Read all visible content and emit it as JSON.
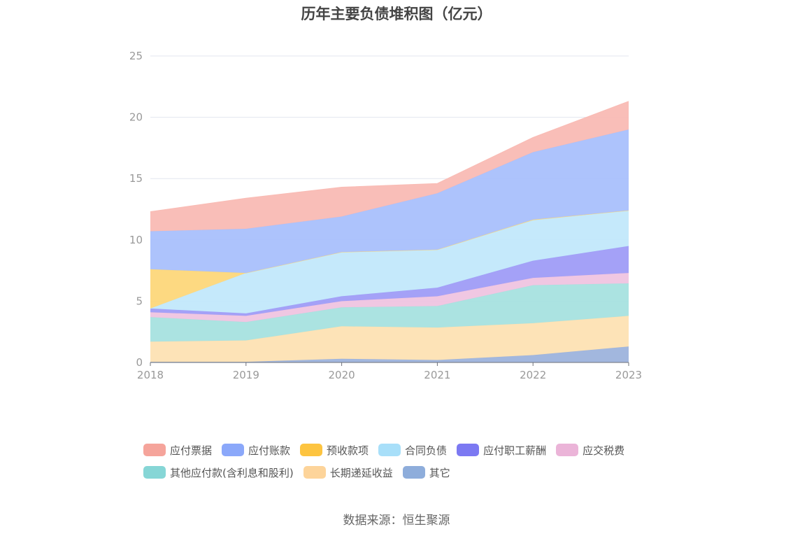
{
  "page": {
    "title": "历年主要负债堆积图（亿元）",
    "source": "数据来源：恒生聚源"
  },
  "chart_data": {
    "type": "area",
    "stacked": true,
    "title": "历年主要负债堆积图（亿元）",
    "categories": [
      "2018",
      "2019",
      "2020",
      "2021",
      "2022",
      "2023"
    ],
    "ylim": [
      0,
      25
    ],
    "yticks": [
      0,
      5,
      10,
      15,
      20,
      25
    ],
    "grid": true,
    "legend_position": "bottom",
    "series": [
      {
        "name": "其它",
        "color": "#9db3dc",
        "values": [
          0.05,
          0.05,
          0.3,
          0.2,
          0.6,
          1.3
        ]
      },
      {
        "name": "长期递延收益",
        "color": "#fde2b3",
        "values": [
          1.65,
          1.75,
          2.65,
          2.65,
          2.6,
          2.5
        ]
      },
      {
        "name": "其他应付款(含利息和股利)",
        "color": "#a6e2df",
        "values": [
          2.0,
          1.5,
          1.55,
          1.75,
          3.1,
          2.65
        ]
      },
      {
        "name": "应交税费",
        "color": "#efc4e0",
        "values": [
          0.4,
          0.5,
          0.5,
          0.8,
          0.6,
          0.85
        ]
      },
      {
        "name": "应付职工薪酬",
        "color": "#9f9cf7",
        "values": [
          0.3,
          0.2,
          0.4,
          0.7,
          1.4,
          2.2
        ]
      },
      {
        "name": "合同负债",
        "color": "#c2e8fb",
        "values": [
          0,
          3.3,
          3.6,
          3.1,
          3.3,
          2.9
        ]
      },
      {
        "name": "预收款项",
        "color": "#fdd77a",
        "values": [
          3.2,
          0,
          0,
          0,
          0.05,
          0
        ]
      },
      {
        "name": "应付账款",
        "color": "#a9c0fc",
        "values": [
          3.1,
          3.6,
          2.9,
          4.6,
          5.5,
          6.6
        ]
      },
      {
        "name": "应付票据",
        "color": "#f9bbb4",
        "values": [
          1.6,
          2.5,
          2.4,
          0.8,
          1.2,
          2.3
        ]
      }
    ]
  },
  "legend": [
    {
      "label": "应付票据",
      "color": "#f5a49b"
    },
    {
      "label": "应付账款",
      "color": "#8ba8fa"
    },
    {
      "label": "预收款项",
      "color": "#fdc440"
    },
    {
      "label": "合同负债",
      "color": "#a8dff9"
    },
    {
      "label": "应付职工薪酬",
      "color": "#7c79f2"
    },
    {
      "label": "应交税费",
      "color": "#ebb4d8"
    },
    {
      "label": "其他应付款(含利息和股利)",
      "color": "#86d6d6"
    },
    {
      "label": "长期递延收益",
      "color": "#fdd49a"
    },
    {
      "label": "其它",
      "color": "#8eaddb"
    }
  ]
}
